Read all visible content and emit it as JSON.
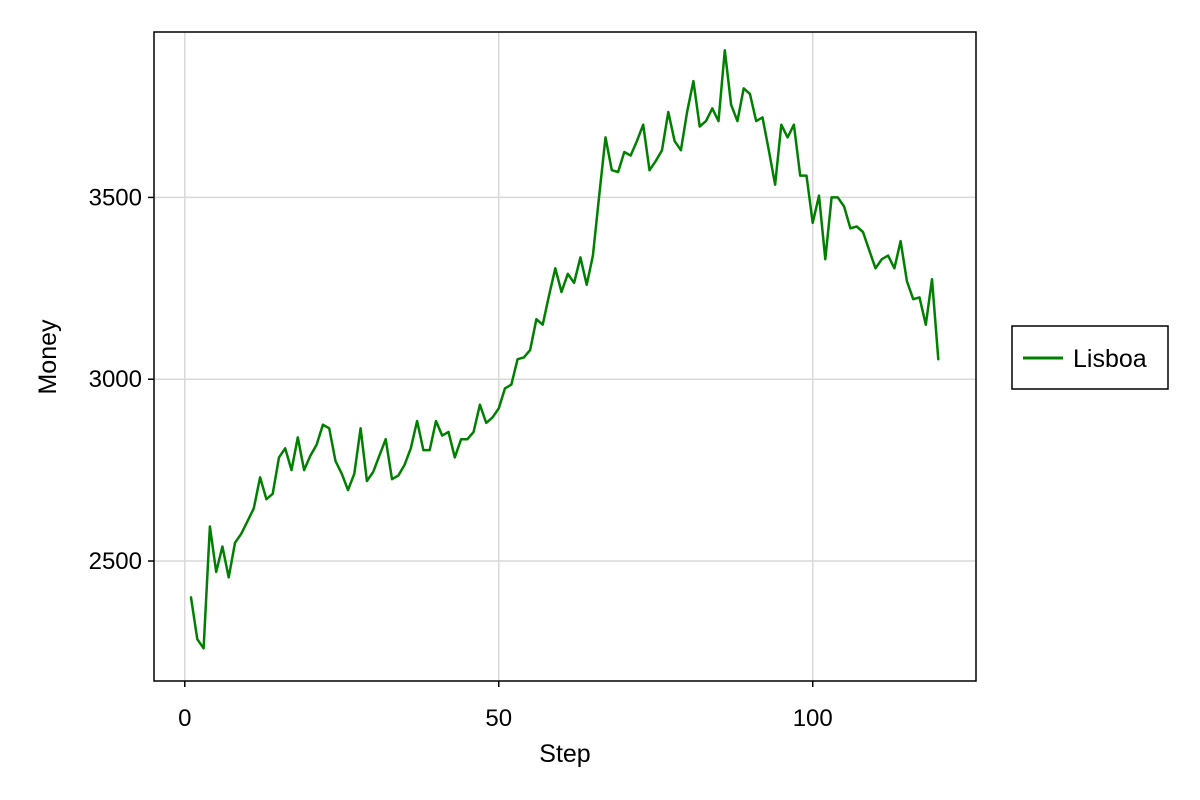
{
  "chart_data": {
    "type": "line",
    "title": "",
    "xlabel": "Step",
    "ylabel": "Money",
    "xlim": [
      -4.9,
      126
    ],
    "ylim": [
      2170,
      3955
    ],
    "xticks": [
      0,
      50,
      100
    ],
    "yticks": [
      2500,
      3000,
      3500
    ],
    "grid": true,
    "legend_position": "right-outside",
    "series": [
      {
        "name": "Lisboa",
        "color": "#008000",
        "x": [
          1,
          2,
          3,
          4,
          5,
          6,
          7,
          8,
          9,
          10,
          11,
          12,
          13,
          14,
          15,
          16,
          17,
          18,
          19,
          20,
          21,
          22,
          23,
          24,
          25,
          26,
          27,
          28,
          29,
          30,
          31,
          32,
          33,
          34,
          35,
          36,
          37,
          38,
          39,
          40,
          41,
          42,
          43,
          44,
          45,
          46,
          47,
          48,
          49,
          50,
          51,
          52,
          53,
          54,
          55,
          56,
          57,
          58,
          59,
          60,
          61,
          62,
          63,
          64,
          65,
          66,
          67,
          68,
          69,
          70,
          71,
          72,
          73,
          74,
          75,
          76,
          77,
          78,
          79,
          80,
          81,
          82,
          83,
          84,
          85,
          86,
          87,
          88,
          89,
          90,
          91,
          92,
          93,
          94,
          95,
          96,
          97,
          98,
          99,
          100,
          101,
          102,
          103,
          104,
          105,
          106,
          107,
          108,
          109,
          110,
          111,
          112,
          113,
          114,
          115,
          116,
          117,
          118,
          119,
          120
        ],
        "values": [
          2400,
          2285,
          2260,
          2595,
          2470,
          2540,
          2455,
          2550,
          2575,
          2610,
          2645,
          2730,
          2670,
          2685,
          2785,
          2810,
          2750,
          2840,
          2750,
          2790,
          2820,
          2875,
          2865,
          2775,
          2740,
          2695,
          2740,
          2865,
          2720,
          2745,
          2790,
          2835,
          2725,
          2735,
          2765,
          2810,
          2885,
          2805,
          2805,
          2885,
          2845,
          2855,
          2785,
          2835,
          2835,
          2855,
          2930,
          2880,
          2895,
          2920,
          2975,
          2985,
          3055,
          3060,
          3080,
          3165,
          3150,
          3230,
          3305,
          3240,
          3290,
          3265,
          3335,
          3260,
          3340,
          3505,
          3665,
          3575,
          3570,
          3625,
          3615,
          3655,
          3700,
          3575,
          3600,
          3630,
          3735,
          3655,
          3630,
          3735,
          3820,
          3695,
          3710,
          3745,
          3710,
          3905,
          3755,
          3710,
          3800,
          3785,
          3710,
          3720,
          3630,
          3535,
          3700,
          3665,
          3700,
          3560,
          3560,
          3430,
          3505,
          3330,
          3500,
          3500,
          3475,
          3415,
          3420,
          3405,
          3355,
          3305,
          3330,
          3340,
          3305,
          3380,
          3270,
          3220,
          3225,
          3150,
          3275,
          3055
        ]
      }
    ]
  }
}
